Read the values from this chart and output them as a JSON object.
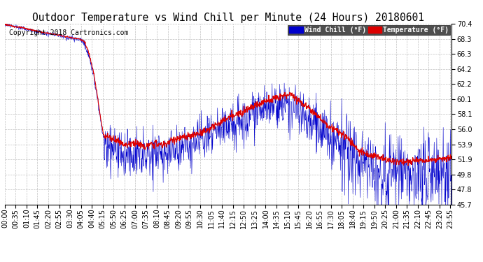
{
  "title": "Outdoor Temperature vs Wind Chill per Minute (24 Hours) 20180601",
  "copyright_text": "Copyright 2018 Cartronics.com",
  "legend_wind_chill": "Wind Chill (°F)",
  "legend_temperature": "Temperature (°F)",
  "ylim": [
    45.7,
    70.4
  ],
  "yticks": [
    45.7,
    47.8,
    49.8,
    51.9,
    53.9,
    56.0,
    58.1,
    60.1,
    62.2,
    64.2,
    66.3,
    68.3,
    70.4
  ],
  "num_minutes": 1440,
  "background_color": "#ffffff",
  "grid_color": "#c0c0c0",
  "temp_color": "#dd0000",
  "wind_chill_color": "#0000cc",
  "title_fontsize": 10.5,
  "axis_fontsize": 7,
  "copyright_fontsize": 7,
  "tick_interval": 35
}
